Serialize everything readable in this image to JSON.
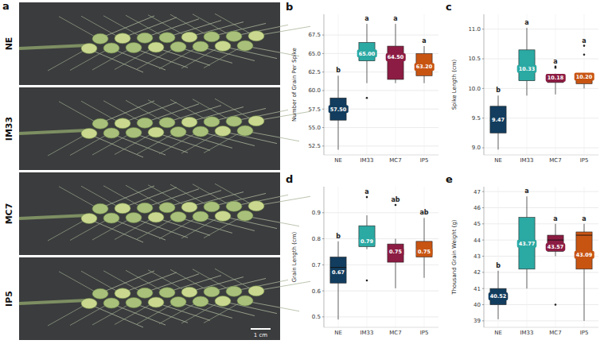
{
  "photo_panel": {
    "letter": "a",
    "rows": [
      "NE",
      "IM33",
      "MC7",
      "IP5"
    ],
    "scale_bar": "1 cm"
  },
  "chart_data": [
    {
      "type": "box",
      "letter": "b",
      "y_label": "Number of Grain Per Spike",
      "categories": [
        "NE",
        "IM33",
        "MC7",
        "IP5"
      ],
      "colors": [
        "#123d5e",
        "#2ba9a3",
        "#8c1c43",
        "#c85412"
      ],
      "whisker_low": [
        52,
        61,
        61,
        61
      ],
      "q1": [
        56,
        64,
        61.5,
        62
      ],
      "median": [
        57.5,
        65,
        64.5,
        63.2
      ],
      "q3": [
        59,
        66.5,
        66,
        65
      ],
      "whisker_high": [
        62,
        69,
        69,
        66
      ],
      "outliers": [
        [],
        [
          59
        ],
        [],
        []
      ],
      "values": [
        57.5,
        65,
        64.5,
        63.2
      ],
      "value_labels": [
        "57.50",
        "65.00",
        "64.50",
        "63.20"
      ],
      "data_labels": true,
      "letters": [
        "b",
        "a",
        "a",
        "a"
      ],
      "ylim": [
        51.3,
        70.3
      ],
      "yticks": [
        52.5,
        {
          "value": 55,
          "label": "55.0"
        },
        57.5,
        {
          "value": 60,
          "label": "60.0"
        },
        62.5,
        {
          "value": 65,
          "label": "65.0"
        },
        67.5
      ],
      "grid": true
    },
    {
      "type": "box",
      "letter": "c",
      "y_label": "Spike Length (cm)",
      "categories": [
        "NE",
        "IM33",
        "MC7",
        "IP5"
      ],
      "colors": [
        "#123d5e",
        "#2ba9a3",
        "#8c1c43",
        "#c85412"
      ],
      "whisker_low": [
        8.97,
        9.88,
        9.9,
        10.0
      ],
      "q1": [
        9.25,
        10.13,
        10.1,
        10.08
      ],
      "median": [
        9.47,
        10.33,
        10.18,
        10.2
      ],
      "q3": [
        9.7,
        10.65,
        10.2,
        10.2
      ],
      "whisker_high": [
        9.88,
        11.02,
        10.25,
        10.22
      ],
      "outliers": [
        [],
        [],
        [
          10.35,
          10.37
        ],
        [
          10.57,
          10.72
        ]
      ],
      "values": [
        9.47,
        10.33,
        10.18,
        10.2
      ],
      "value_labels": [
        "9.47",
        "10.33",
        "10.18",
        "10.20"
      ],
      "data_labels": true,
      "letters": [
        "b",
        "a",
        "a",
        "a"
      ],
      "ylim": [
        8.88,
        11.25
      ],
      "yticks": [
        {
          "value": 9,
          "label": "9.0"
        },
        9.5,
        {
          "value": 10,
          "label": "10.0"
        },
        10.5,
        {
          "value": 11,
          "label": "11.0"
        }
      ],
      "grid": true
    },
    {
      "type": "box",
      "letter": "d",
      "y_label": "Grain Length (cm)",
      "categories": [
        "NE",
        "IM33",
        "MC7",
        "IP5"
      ],
      "colors": [
        "#123d5e",
        "#2ba9a3",
        "#8c1c43",
        "#c85412"
      ],
      "whisker_low": [
        0.49,
        0.76,
        0.61,
        0.65
      ],
      "q1": [
        0.63,
        0.77,
        0.71,
        0.73
      ],
      "median": [
        0.69,
        0.8,
        0.74,
        0.75
      ],
      "q3": [
        0.73,
        0.85,
        0.78,
        0.79
      ],
      "whisker_high": [
        0.79,
        0.89,
        0.8,
        0.88
      ],
      "outliers": [
        [],
        [
          0.64,
          0.96
        ],
        [
          0.93
        ],
        []
      ],
      "values": [
        0.67,
        0.79,
        0.75,
        0.75
      ],
      "value_labels": [
        "0.67",
        "0.79",
        "0.75",
        "0.75"
      ],
      "data_labels": true,
      "letters": [
        "b",
        "a",
        "ab",
        "ab"
      ],
      "ylim": [
        0.46,
        1.0
      ],
      "yticks": [
        0.5,
        0.6,
        0.7,
        0.8,
        0.9
      ],
      "grid": true
    },
    {
      "type": "box",
      "letter": "e",
      "y_label": "Thousand Grain Weight (g)",
      "categories": [
        "NE",
        "IM33",
        "MC7",
        "IP5"
      ],
      "colors": [
        "#123d5e",
        "#2ba9a3",
        "#8c1c43",
        "#c85412"
      ],
      "whisker_low": [
        39.1,
        41.0,
        43.0,
        39.0
      ],
      "q1": [
        40.0,
        42.2,
        43.3,
        42.2
      ],
      "median": [
        40.5,
        43.6,
        44.0,
        44.3
      ],
      "q3": [
        41.0,
        45.4,
        44.3,
        44.5
      ],
      "whisker_high": [
        42.1,
        46.7,
        45.0,
        45.0
      ],
      "outliers": [
        [],
        [],
        [
          40.0
        ],
        []
      ],
      "values": [
        40.52,
        43.77,
        43.57,
        43.09
      ],
      "value_labels": [
        "40.52",
        "43.77",
        "43.57",
        "43.09"
      ],
      "data_labels": true,
      "letters": [
        "b",
        "a",
        "a",
        "a"
      ],
      "ylim": [
        38.6,
        47.3
      ],
      "yticks": [
        39,
        40,
        41,
        42,
        43,
        44,
        45,
        46,
        47
      ],
      "grid": true
    }
  ]
}
